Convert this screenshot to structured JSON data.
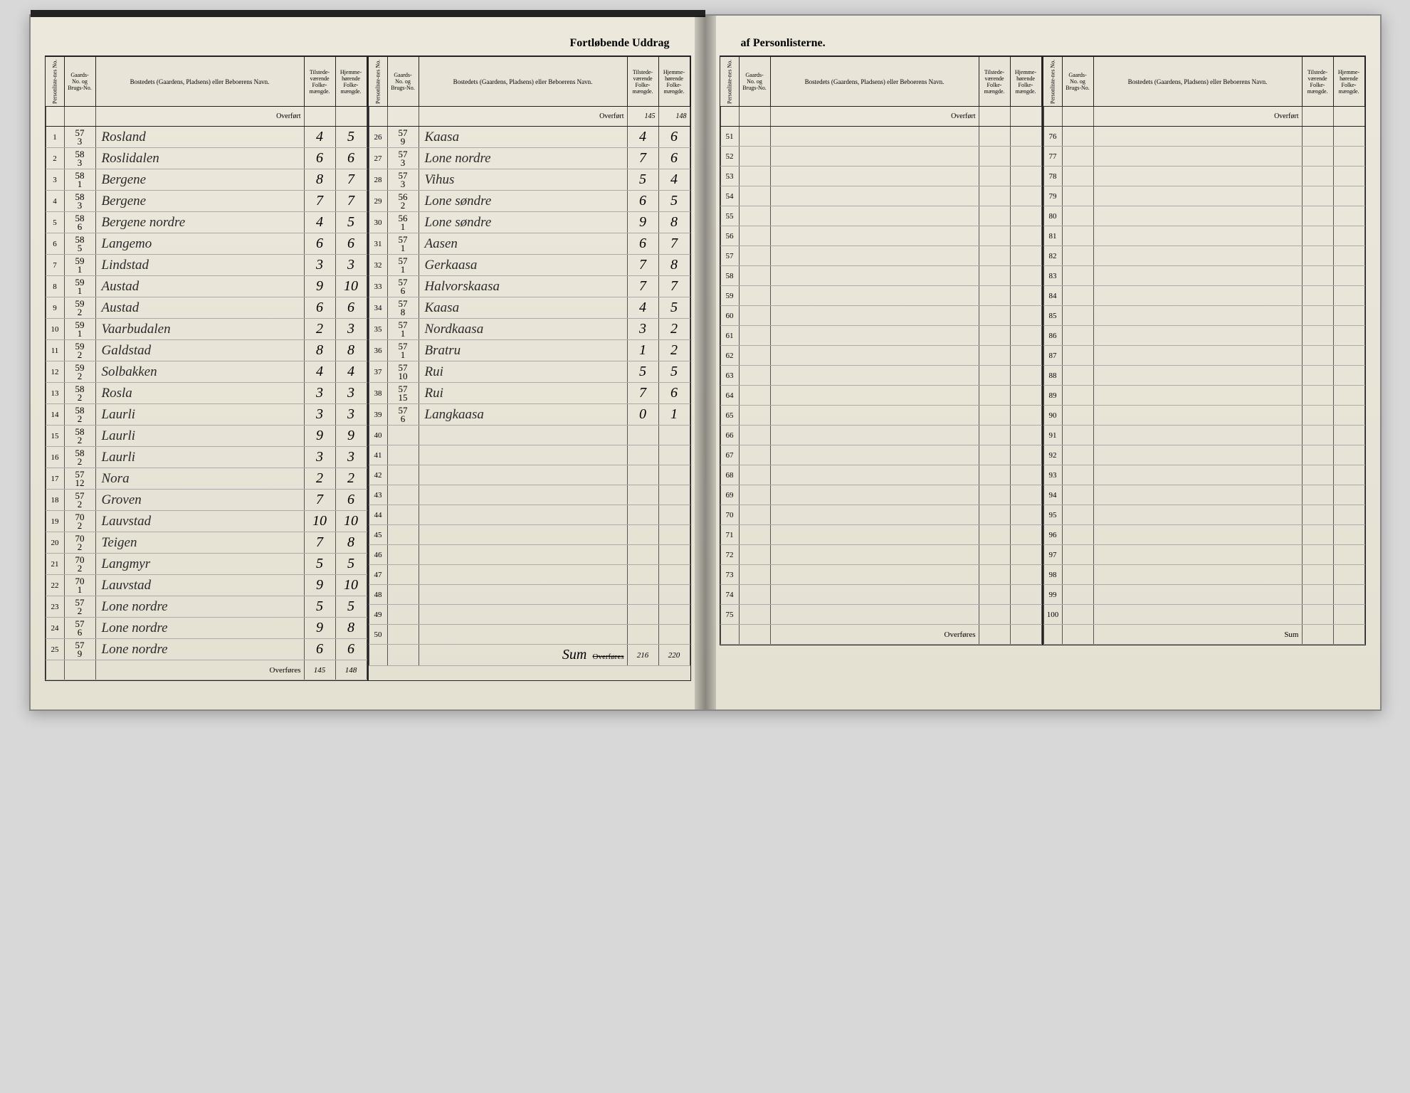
{
  "title_left": "Fortløbende Uddrag",
  "title_right": "af Personlisterne.",
  "headers": {
    "personliste": "Personliste-nes No.",
    "gaards": "Gaards-No. og Brugs-No.",
    "bosted": "Bostedets (Gaardens, Pladsens) eller Beboerens Navn.",
    "tilstede": "Tilstede-værende Folke-mængde.",
    "hjemme": "Hjemme-hørende Folke-mængde."
  },
  "overfort_label": "Overført",
  "overfores_label": "Overføres",
  "sum_label": "Sum",
  "left_a": {
    "rows": [
      {
        "n": "1",
        "g": "57/3",
        "name": "Rosland",
        "t": "4",
        "h": "5"
      },
      {
        "n": "2",
        "g": "58/3",
        "name": "Roslidalen",
        "t": "6",
        "h": "6"
      },
      {
        "n": "3",
        "g": "58/1",
        "name": "Bergene",
        "t": "8",
        "h": "7"
      },
      {
        "n": "4",
        "g": "58/3",
        "name": "Bergene",
        "t": "7",
        "h": "7"
      },
      {
        "n": "5",
        "g": "58/6",
        "name": "Bergene nordre",
        "t": "4",
        "h": "5"
      },
      {
        "n": "6",
        "g": "58/5",
        "name": "Langemo",
        "t": "6",
        "h": "6"
      },
      {
        "n": "7",
        "g": "59/1",
        "name": "Lindstad",
        "t": "3",
        "h": "3"
      },
      {
        "n": "8",
        "g": "59/1",
        "name": "Austad",
        "t": "9",
        "h": "10"
      },
      {
        "n": "9",
        "g": "59/2",
        "name": "Austad",
        "t": "6",
        "h": "6"
      },
      {
        "n": "10",
        "g": "59/1",
        "name": "Vaarbudalen",
        "t": "2",
        "h": "3"
      },
      {
        "n": "11",
        "g": "59/2",
        "name": "Galdstad",
        "t": "8",
        "h": "8"
      },
      {
        "n": "12",
        "g": "59/2",
        "name": "Solbakken",
        "t": "4",
        "h": "4"
      },
      {
        "n": "13",
        "g": "58/2",
        "name": "Rosla",
        "t": "3",
        "h": "3"
      },
      {
        "n": "14",
        "g": "58/2",
        "name": "Laurli",
        "t": "3",
        "h": "3"
      },
      {
        "n": "15",
        "g": "58/2",
        "name": "Laurli",
        "t": "9",
        "h": "9"
      },
      {
        "n": "16",
        "g": "58/2",
        "name": "Laurli",
        "t": "3",
        "h": "3"
      },
      {
        "n": "17",
        "g": "57/12",
        "name": "Nora",
        "t": "2",
        "h": "2"
      },
      {
        "n": "18",
        "g": "57/2",
        "name": "Groven",
        "t": "7",
        "h": "6"
      },
      {
        "n": "19",
        "g": "70/2",
        "name": "Lauvstad",
        "t": "10",
        "h": "10"
      },
      {
        "n": "20",
        "g": "70/2",
        "name": "Teigen",
        "t": "7",
        "h": "8"
      },
      {
        "n": "21",
        "g": "70/2",
        "name": "Langmyr",
        "t": "5",
        "h": "5"
      },
      {
        "n": "22",
        "g": "70/1",
        "name": "Lauvstad",
        "t": "9",
        "h": "10"
      },
      {
        "n": "23",
        "g": "57/2",
        "name": "Lone nordre",
        "t": "5",
        "h": "5"
      },
      {
        "n": "24",
        "g": "57/6",
        "name": "Lone nordre",
        "t": "9",
        "h": "8"
      },
      {
        "n": "25",
        "g": "57/9",
        "name": "Lone nordre",
        "t": "6",
        "h": "6"
      }
    ],
    "overfores": {
      "t": "145",
      "h": "148"
    }
  },
  "left_b": {
    "overfort": {
      "t": "145",
      "h": "148"
    },
    "rows": [
      {
        "n": "26",
        "g": "57/9",
        "name": "Kaasa",
        "t": "4",
        "h": "6"
      },
      {
        "n": "27",
        "g": "57/3",
        "name": "Lone nordre",
        "t": "7",
        "h": "6"
      },
      {
        "n": "28",
        "g": "57/3",
        "name": "Vihus",
        "t": "5",
        "h": "4"
      },
      {
        "n": "29",
        "g": "56/2",
        "name": "Lone søndre",
        "t": "6",
        "h": "5"
      },
      {
        "n": "30",
        "g": "56/1",
        "name": "Lone søndre",
        "t": "9",
        "h": "8"
      },
      {
        "n": "31",
        "g": "57/1",
        "name": "Aasen",
        "t": "6",
        "h": "7"
      },
      {
        "n": "32",
        "g": "57/1",
        "name": "Gerkaasa",
        "t": "7",
        "h": "8"
      },
      {
        "n": "33",
        "g": "57/6",
        "name": "Halvorskaasa",
        "t": "7",
        "h": "7"
      },
      {
        "n": "34",
        "g": "57/8",
        "name": "Kaasa",
        "t": "4",
        "h": "5"
      },
      {
        "n": "35",
        "g": "57/1",
        "name": "Nordkaasa",
        "t": "3",
        "h": "2"
      },
      {
        "n": "36",
        "g": "57/1",
        "name": "Bratru",
        "t": "1",
        "h": "2"
      },
      {
        "n": "37",
        "g": "57/10",
        "name": "Rui",
        "t": "5",
        "h": "5"
      },
      {
        "n": "38",
        "g": "57/15",
        "name": "Rui",
        "t": "7",
        "h": "6"
      },
      {
        "n": "39",
        "g": "57/6",
        "name": "Langkaasa",
        "t": "0",
        "h": "1"
      },
      {
        "n": "40",
        "g": "",
        "name": "",
        "t": "",
        "h": ""
      },
      {
        "n": "41",
        "g": "",
        "name": "",
        "t": "",
        "h": ""
      },
      {
        "n": "42",
        "g": "",
        "name": "",
        "t": "",
        "h": ""
      },
      {
        "n": "43",
        "g": "",
        "name": "",
        "t": "",
        "h": ""
      },
      {
        "n": "44",
        "g": "",
        "name": "",
        "t": "",
        "h": ""
      },
      {
        "n": "45",
        "g": "",
        "name": "",
        "t": "",
        "h": ""
      },
      {
        "n": "46",
        "g": "",
        "name": "",
        "t": "",
        "h": ""
      },
      {
        "n": "47",
        "g": "",
        "name": "",
        "t": "",
        "h": ""
      },
      {
        "n": "48",
        "g": "",
        "name": "",
        "t": "",
        "h": ""
      },
      {
        "n": "49",
        "g": "",
        "name": "",
        "t": "",
        "h": ""
      },
      {
        "n": "50",
        "g": "",
        "name": "",
        "t": "",
        "h": ""
      }
    ],
    "sum_prefix": "Sum",
    "overfores": {
      "t": "216",
      "h": "220"
    }
  },
  "right_a": {
    "rows": [
      {
        "n": "51"
      },
      {
        "n": "52"
      },
      {
        "n": "53"
      },
      {
        "n": "54"
      },
      {
        "n": "55"
      },
      {
        "n": "56"
      },
      {
        "n": "57"
      },
      {
        "n": "58"
      },
      {
        "n": "59"
      },
      {
        "n": "60"
      },
      {
        "n": "61"
      },
      {
        "n": "62"
      },
      {
        "n": "63"
      },
      {
        "n": "64"
      },
      {
        "n": "65"
      },
      {
        "n": "66"
      },
      {
        "n": "67"
      },
      {
        "n": "68"
      },
      {
        "n": "69"
      },
      {
        "n": "70"
      },
      {
        "n": "71"
      },
      {
        "n": "72"
      },
      {
        "n": "73"
      },
      {
        "n": "74"
      },
      {
        "n": "75"
      }
    ]
  },
  "right_b": {
    "rows": [
      {
        "n": "76"
      },
      {
        "n": "77"
      },
      {
        "n": "78"
      },
      {
        "n": "79"
      },
      {
        "n": "80"
      },
      {
        "n": "81"
      },
      {
        "n": "82"
      },
      {
        "n": "83"
      },
      {
        "n": "84"
      },
      {
        "n": "85"
      },
      {
        "n": "86"
      },
      {
        "n": "87"
      },
      {
        "n": "88"
      },
      {
        "n": "89"
      },
      {
        "n": "90"
      },
      {
        "n": "91"
      },
      {
        "n": "92"
      },
      {
        "n": "93"
      },
      {
        "n": "94"
      },
      {
        "n": "95"
      },
      {
        "n": "96"
      },
      {
        "n": "97"
      },
      {
        "n": "98"
      },
      {
        "n": "99"
      },
      {
        "n": "100"
      }
    ]
  },
  "colors": {
    "paper": "#e8e4d8",
    "ink": "#2a2a2a",
    "rule": "#555555"
  }
}
